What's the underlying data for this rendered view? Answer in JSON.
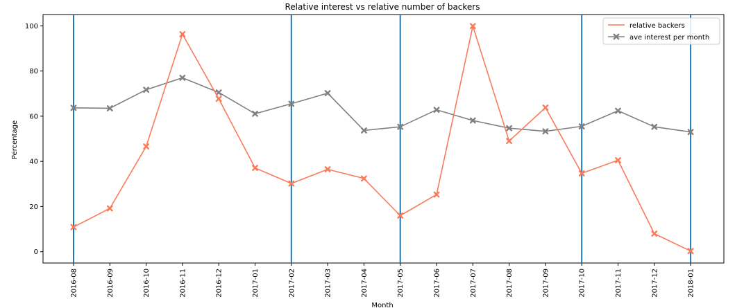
{
  "chart_data": {
    "type": "line",
    "title": "Relative interest vs relative number of backers",
    "xlabel": "Month",
    "ylabel": "Percentage",
    "categories": [
      "2016-08",
      "2016-09",
      "2016-10",
      "2016-11",
      "2016-12",
      "2017-01",
      "2017-02",
      "2017-03",
      "2017-04",
      "2017-05",
      "2017-06",
      "2017-07",
      "2017-08",
      "2017-09",
      "2017-10",
      "2017-11",
      "2017-12",
      "2018-01"
    ],
    "yticks": [
      "0",
      "20",
      "40",
      "60",
      "80",
      "100"
    ],
    "ylim": [
      -5,
      105
    ],
    "grid": false,
    "legend_position": "top-right",
    "vertical_markers": [
      "2016-08",
      "2017-02",
      "2017-05",
      "2017-10",
      "2018-01"
    ],
    "vertical_marker_color": "#1f77b4",
    "series": [
      {
        "name": "relative backers",
        "color": "#fa7a5a",
        "marker": "x",
        "values": [
          10.9,
          19.2,
          46.6,
          96.3,
          67.7,
          37.1,
          30.2,
          36.5,
          32.4,
          16.0,
          25.3,
          99.9,
          49.0,
          63.8,
          34.7,
          40.5,
          8.0,
          0.3
        ]
      },
      {
        "name": "ave interest per month",
        "color": "#808080",
        "marker": "x",
        "values": [
          63.7,
          63.5,
          71.7,
          77.0,
          70.5,
          61.1,
          65.5,
          70.2,
          53.7,
          55.3,
          62.8,
          58.1,
          54.7,
          53.3,
          55.5,
          62.4,
          55.3,
          53.0
        ]
      }
    ]
  }
}
